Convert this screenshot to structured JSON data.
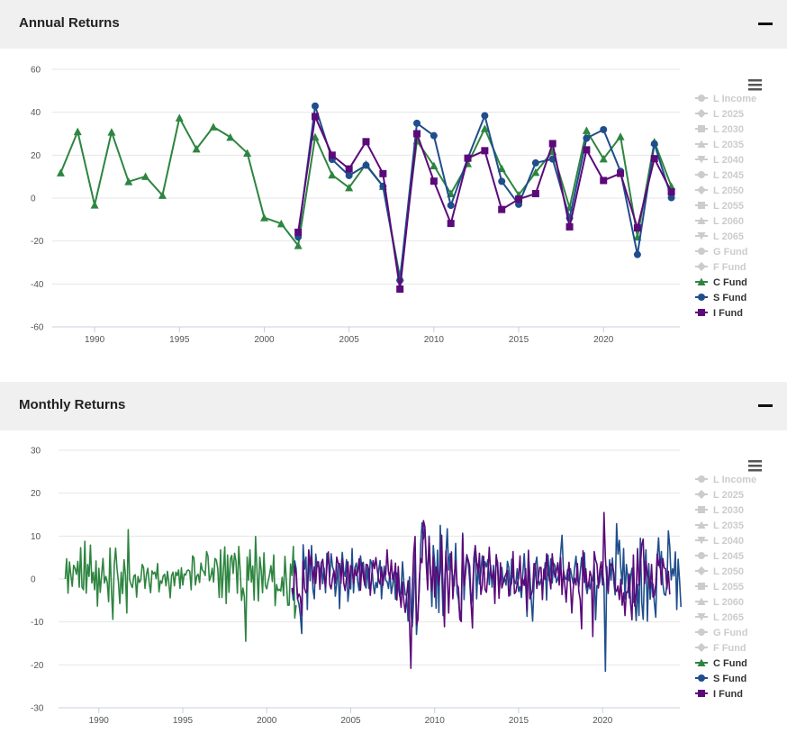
{
  "panels": [
    {
      "title": "Annual Returns"
    },
    {
      "title": "Monthly Returns"
    }
  ],
  "colors": {
    "C Fund": "#2e8540",
    "S Fund": "#1f4e8c",
    "I Fund": "#5b0a7a",
    "inactive": "#cccccc"
  },
  "legend": [
    {
      "name": "L Income",
      "symbol": "circle",
      "active": false
    },
    {
      "name": "L 2025",
      "symbol": "diamond",
      "active": false
    },
    {
      "name": "L 2030",
      "symbol": "square",
      "active": false
    },
    {
      "name": "L 2035",
      "symbol": "triangle",
      "active": false
    },
    {
      "name": "L 2040",
      "symbol": "triangle-down",
      "active": false
    },
    {
      "name": "L 2045",
      "symbol": "circle",
      "active": false
    },
    {
      "name": "L 2050",
      "symbol": "diamond",
      "active": false
    },
    {
      "name": "L 2055",
      "symbol": "square",
      "active": false
    },
    {
      "name": "L 2060",
      "symbol": "triangle",
      "active": false
    },
    {
      "name": "L 2065",
      "symbol": "triangle-down",
      "active": false
    },
    {
      "name": "G Fund",
      "symbol": "circle",
      "active": false
    },
    {
      "name": "F Fund",
      "symbol": "diamond",
      "active": false
    },
    {
      "name": "C Fund",
      "symbol": "triangle",
      "active": true
    },
    {
      "name": "S Fund",
      "symbol": "circle",
      "active": true
    },
    {
      "name": "I Fund",
      "symbol": "square",
      "active": true
    }
  ],
  "chart_data": [
    {
      "type": "line",
      "title": "Annual Returns",
      "xlim": [
        1987.5,
        2024.5
      ],
      "ylim": [
        -60,
        60
      ],
      "yticks": [
        60,
        40,
        20,
        0,
        -20,
        -40,
        -60
      ],
      "xticks": [
        1990,
        1995,
        2000,
        2005,
        2010,
        2015,
        2020
      ],
      "legend_position": "right",
      "series": [
        {
          "name": "C Fund",
          "x": [
            1988,
            1989,
            1990,
            1991,
            1992,
            1993,
            1994,
            1995,
            1996,
            1997,
            1998,
            1999,
            2000,
            2001,
            2002,
            2003,
            2004,
            2005,
            2006,
            2007,
            2008,
            2009,
            2010,
            2011,
            2012,
            2013,
            2014,
            2015,
            2016,
            2017,
            2018,
            2019,
            2020,
            2021,
            2022,
            2023,
            2024
          ],
          "y": [
            11.8,
            31.0,
            -3.2,
            30.8,
            7.7,
            10.1,
            1.3,
            37.4,
            22.9,
            33.2,
            28.4,
            21.0,
            -9.1,
            -11.9,
            -22.1,
            28.5,
            10.8,
            4.9,
            15.8,
            5.5,
            -37.0,
            26.7,
            15.1,
            2.1,
            16.1,
            32.4,
            13.8,
            1.5,
            12.0,
            21.8,
            -4.4,
            31.5,
            18.3,
            28.7,
            -18.1,
            26.2,
            5.5
          ]
        },
        {
          "name": "S Fund",
          "x": [
            2002,
            2003,
            2004,
            2005,
            2006,
            2007,
            2008,
            2009,
            2010,
            2011,
            2012,
            2013,
            2014,
            2015,
            2016,
            2017,
            2018,
            2019,
            2020,
            2021,
            2022,
            2023,
            2024
          ],
          "y": [
            -18.1,
            42.9,
            18.0,
            10.5,
            15.3,
            5.5,
            -38.3,
            34.9,
            29.1,
            -3.4,
            18.6,
            38.4,
            7.8,
            -2.9,
            16.4,
            18.2,
            -9.3,
            27.9,
            31.9,
            12.5,
            -26.3,
            25.3,
            0.2
          ]
        },
        {
          "name": "I Fund",
          "x": [
            2002,
            2003,
            2004,
            2005,
            2006,
            2007,
            2008,
            2009,
            2010,
            2011,
            2012,
            2013,
            2014,
            2015,
            2016,
            2017,
            2018,
            2019,
            2020,
            2021,
            2022,
            2023,
            2024
          ],
          "y": [
            -15.9,
            38.0,
            20.0,
            13.6,
            26.3,
            11.4,
            -42.4,
            30.0,
            7.9,
            -11.8,
            18.6,
            22.1,
            -5.3,
            -0.5,
            2.1,
            25.4,
            -13.4,
            22.5,
            8.2,
            11.5,
            -13.9,
            18.4,
            2.9
          ]
        }
      ]
    },
    {
      "type": "line",
      "title": "Monthly Returns",
      "xlim": [
        1987.6,
        2024.6
      ],
      "ylim": [
        -30,
        30
      ],
      "yticks": [
        30,
        20,
        10,
        0,
        -10,
        -20,
        -30
      ],
      "xticks": [
        1990,
        1995,
        2000,
        2005,
        2010,
        2015,
        2020
      ],
      "x_start": 1988.0,
      "x_step": 0.0833333,
      "legend_position": "right",
      "series": [
        {
          "name": "C Fund",
          "values": [
            0.0,
            4.7,
            -3.3,
            4.0,
            0.9,
            -1.7,
            3.2,
            2.5,
            1.1,
            4.1,
            -1.9,
            7.3,
            -1.9,
            -2.5,
            8.8,
            -3.3,
            3.4,
            0.6,
            7.9,
            -0.9,
            1.6,
            -2.5,
            4.2,
            -6.3,
            2.5,
            -3.1,
            1.0,
            4.8,
            -0.9,
            0.6,
            -0.7,
            -5.3,
            7.2,
            -2.5,
            -9.4,
            3.2,
            7.2,
            2.4,
            -0.6,
            -5.7,
            1.6,
            -3.4,
            4.5,
            1.1,
            -7.9,
            11.5,
            -0.1,
            -1.3,
            -2.0,
            0.7,
            1.0,
            -4.2,
            0.6,
            -0.8,
            -0.2,
            3.4,
            2.6,
            -2.2,
            1.0,
            2.5,
            -0.9,
            -3.2,
            1.9,
            1.2,
            1.6,
            0.1,
            3.6,
            -3.0,
            -0.4,
            -1.0,
            0.7,
            1.1,
            -1.6,
            1.8,
            -0.7,
            -4.4,
            0.8,
            1.6,
            -1.6,
            1.6,
            0.8,
            2.1,
            -2.2,
            2.6,
            -1.4,
            1.2,
            0.9,
            1.9,
            2.1,
            1.8,
            -2.5,
            5.4,
            4.9,
            -1.4,
            0.7,
            1.1,
            -0.8,
            3.7,
            2.1,
            1.7,
            0.8,
            6.4,
            5.3,
            -0.4,
            0.6,
            2.5,
            -0.7,
            4.8,
            4.4,
            2.4,
            -4.3,
            6.8,
            -4.3,
            2.1,
            7.5,
            -5.7,
            5.6,
            -3.1,
            4.7,
            5.5,
            1.3,
            6.0,
            4.2,
            -3.3,
            7.6,
            2.1,
            -5.0,
            -2.1,
            -4.1,
            -14.5,
            5.1,
            -0.3,
            6.8,
            -0.7,
            3.0,
            -4.9,
            9.9,
            2.0,
            -5.1,
            5.1,
            2.1,
            -3.2,
            6.1,
            -1.5,
            -2.3,
            -0.5,
            1.0,
            3.1,
            -0.6,
            5.6,
            -6.2,
            -1.3,
            -2.7,
            -2.4,
            -2.8,
            0.4,
            -3.9,
            5.3,
            -0.3,
            -6.1,
            -6.1,
            3.5,
            0.8,
            7.6,
            -9.1,
            -6.1
          ],
          "start_index": 0
        },
        {
          "name": "S Fund",
          "values": [
            -2.4,
            -4.9,
            4.2,
            2.4,
            -4.6,
            -5.8,
            -8.4,
            -12.7,
            8.0,
            2.3,
            5.1,
            -7.1,
            6.5,
            -0.4,
            7.8,
            -2.4,
            -4.6,
            5.8,
            2.9,
            3.2,
            1.5,
            3.9,
            -1.1,
            2.5,
            -3.2,
            6.0,
            5.3,
            0.5,
            5.9,
            2.9,
            1.8,
            -4.0,
            -0.8,
            3.4,
            -6.9,
            2.0,
            6.2,
            1.8,
            0.6,
            4.5,
            -5.2,
            -1.7,
            -2.3,
            7.1,
            -3.2,
            2.7,
            3.7,
            -0.6,
            -2.7,
            5.4,
            2.4,
            3.9,
            -1.4,
            -2.1,
            2.8,
            -2.2,
            4.5,
            3.6,
            -0.9,
            -3.4,
            -0.8,
            -2.0,
            2.1,
            4.3,
            -4.6,
            -0.1,
            3.0,
            -0.3,
            -0.6,
            -2.2,
            1.5,
            -3.4,
            -1.3,
            1.6,
            -4.7,
            1.4,
            -2.0,
            -4.0,
            -2.9,
            4.0,
            -0.9,
            -3.7,
            -3.8,
            -9.8,
            0.5,
            -7.4,
            -11.1,
            -4.6,
            6.5,
            -12.9,
            -7.6,
            -2.7,
            7.9,
            13.1,
            9.3,
            11.7,
            5.3,
            0.1,
            10.0,
            1.6,
            -6.4,
            7.8,
            3.8,
            -6.8,
            6.7,
            -7.8,
            12.5,
            1.6,
            -8.5,
            -1.6,
            5.3,
            11.7,
            2.1,
            5.9,
            2.9,
            0.3,
            -1.6,
            8.3,
            -3.1,
            -4.7,
            -9.1,
            -7.0,
            10.7,
            -4.8,
            2.8,
            5.7,
            3.7,
            -0.3,
            -6.0,
            -2.9,
            3.6,
            6.4,
            -4.6,
            3.4,
            -1.2,
            1.5,
            5.4,
            1.1,
            4.0,
            2.8,
            4.5,
            -1.3,
            3.2,
            -1.9,
            3.2,
            -2.3,
            5.1,
            3.9,
            -3.7,
            0.9,
            2.7,
            -0.9,
            0.1,
            -1.4,
            4.1,
            2.7,
            -3.8,
            4.6,
            0.6,
            -0.4,
            -1.1,
            2.4,
            -2.9,
            -1.8,
            -4.3,
            1.2,
            5.9,
            -1.2,
            -8.7,
            5.9,
            1.0,
            -4.9,
            -9.8,
            -1.1,
            3.4,
            5.1,
            -0.2,
            -1.4,
            -0.1,
            -1.9,
            0.4,
            3.8,
            -4.9,
            5.6,
            -0.4,
            4.7,
            -0.9,
            3.7,
            3.1,
            -0.8,
            0.1,
            1.6,
            6.0,
            10.2,
            2.0,
            0.3,
            -0.1,
            2.2,
            -0.4,
            2.4,
            0.5,
            -1.1,
            2.6,
            5.3,
            0.4,
            -1.8,
            1.5,
            5.0,
            1.0,
            6.1,
            -1.6,
            -3.4,
            -0.7,
            -2.3,
            0.2,
            -0.4,
            3.7,
            -9.5,
            -1.5,
            -1.7,
            -0.7,
            2.0,
            1.7,
            -1.3,
            -21.5,
            2.9,
            -3.4,
            4.5,
            -0.3,
            4.9,
            -0.6,
            -3.7,
            12.9,
            5.8,
            9.0,
            2.5,
            -1.2,
            7.1,
            -4.6,
            3.4,
            0.4,
            -4.4,
            0.6,
            2.5,
            -5.5,
            -4.3,
            -9.7,
            -1.3,
            -8.5,
            9.5,
            -5.5,
            -9.4,
            2.3,
            6.8,
            -9.8,
            3.6,
            -4.7,
            -0.8,
            -1.2,
            -5.6,
            -8.9,
            4.8,
            9.6,
            2.6,
            6.4,
            -0.9,
            -3.5,
            -3.8,
            -1.2,
            11.2,
            7.6,
            -0.2,
            2.4,
            0.7,
            6.3,
            -7.1,
            4.6,
            -0.3,
            -6.5
          ],
          "start_index": 162
        },
        {
          "name": "I Fund",
          "values": [
            -2.1,
            -3.3,
            3.0,
            1.3,
            -4.6,
            -3.5,
            -4.2,
            -8.5,
            4.1,
            -2.1,
            -3.2,
            -2.8,
            6.8,
            3.3,
            5.3,
            -1.0,
            2.8,
            -1.0,
            3.9,
            4.0,
            -2.4,
            3.7,
            4.6,
            1.2,
            -1.9,
            3.0,
            6.3,
            -1.3,
            -2.3,
            0.2,
            2.0,
            -1.0,
            5.1,
            3.7,
            3.6,
            -1.0,
            4.6,
            -0.9,
            -2.7,
            0.3,
            4.0,
            -1.8,
            3.1,
            2.8,
            -0.9,
            2.3,
            0.8,
            1.6,
            4.7,
            -2.6,
            3.8,
            0.6,
            -1.3,
            3.4,
            3.3,
            2.0,
            -3.8,
            0.8,
            4.3,
            2.4,
            5.0,
            2.1,
            -0.3,
            -1.2,
            2.8,
            -1.5,
            1.7,
            1.0,
            6.8,
            1.6,
            0.0,
            4.4,
            -0.1,
            0.2,
            3.7,
            -4.9,
            2.9,
            -3.4,
            -6.6,
            -0.7,
            -5.3,
            -7.8,
            -3.8,
            -0.4,
            -9.8,
            -20.8,
            -2.5,
            6.1,
            9.9,
            -10.6,
            -9.6,
            -0.2,
            4.8,
            3.8,
            13.6,
            12.2,
            3.3,
            -2.5,
            9.7,
            1.4,
            -2.7,
            5.2,
            -4.2,
            2.8,
            1.8,
            -1.4,
            2.1,
            10.2,
            -3.2,
            -11.1,
            6.5,
            1.2,
            -7.9,
            1.3,
            6.3,
            -4.6,
            0.6,
            4.2,
            -1.3,
            -2.0,
            -9.4,
            -9.9,
            10.3,
            -1.5,
            1.0,
            5.4,
            4.4,
            3.1,
            -5.6,
            -11.4,
            4.8,
            7.8,
            4.1,
            1.4,
            6.0,
            -3.6,
            -1.6,
            5.3,
            -2.5,
            -3.1,
            1.0,
            7.4,
            1.4,
            0.1,
            1.9,
            -5.7,
            5.7,
            2.7,
            -4.5,
            3.8,
            -2.1,
            -0.9,
            0.4,
            1.2,
            2.0,
            -4.0,
            -1.8,
            -1.0,
            6.4,
            -3.4,
            -3.0,
            -1.1,
            0.3,
            5.4,
            -2.7,
            0.0,
            -1.5,
            2.4,
            -7.4,
            6.7,
            -4.6,
            -3.7,
            -2.6,
            3.6,
            3.4,
            -2.2,
            -0.2,
            2.7,
            2.7,
            -4.8,
            2.3,
            -0.1,
            5.9,
            1.1,
            0.5,
            -2.3,
            5.9,
            2.3,
            0.4,
            1.8,
            3.8,
            -1.4,
            5.0,
            -3.6,
            2.0,
            -1.5,
            -5.4,
            0.7,
            3.9,
            -1.4,
            -7.9,
            -2.1,
            0.2,
            -1.4,
            3.6,
            -2.9,
            -4.8,
            -11.6,
            6.6,
            -0.8,
            2.4,
            -2.0,
            -1.6,
            1.8,
            0.6,
            -13.4,
            6.4,
            4.4,
            3.4,
            -2.1,
            2.1,
            4.0,
            -1.4,
            15.5,
            4.9,
            0.0,
            -2.9,
            2.4,
            3.5,
            3.4,
            1.5,
            -2.4,
            -2.9,
            -1.6,
            -4.8,
            -0.1,
            -6.1,
            -3.2,
            -8.5,
            -3.0,
            -3.1,
            1.2,
            -5.7,
            -9.5,
            5.6,
            -6.3,
            -3.2,
            7.1,
            -1.4,
            3.0,
            8.0,
            9.3,
            -1.1,
            4.1,
            1.3,
            -0.2,
            -2.2,
            3.4,
            -4.2,
            -3.9,
            -1.2,
            5.8,
            3.1,
            4.6,
            -1.3,
            4.8,
            2.6,
            2.4,
            -2.3,
            1.8,
            -3.6
          ],
          "start_index": 162
        }
      ]
    }
  ]
}
